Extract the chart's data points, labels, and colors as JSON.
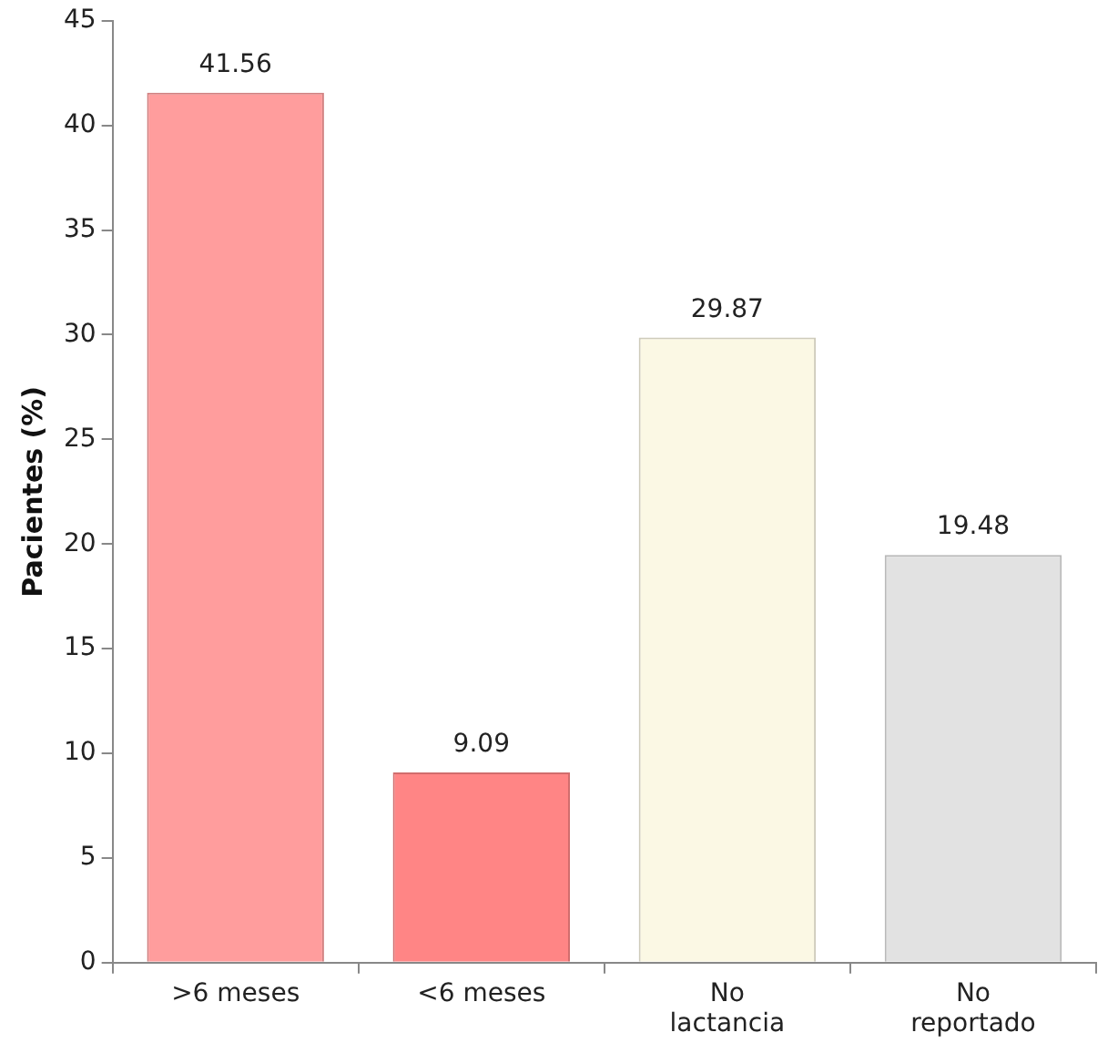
{
  "chart_data": {
    "type": "bar",
    "ylabel": "Pacientes (%)",
    "categories": [
      ">6 meses",
      "<6 meses",
      "No lactancia",
      "No reportado"
    ],
    "values": [
      41.56,
      9.09,
      29.87,
      19.48
    ],
    "colors": [
      "#ff9d9d",
      "#ff8585",
      "#fbf8e4",
      "#e2e2e2"
    ],
    "ylim": [
      0,
      45
    ],
    "yticks": [
      0,
      5,
      10,
      15,
      20,
      25,
      30,
      35,
      40,
      45
    ],
    "grid": false,
    "legend": false,
    "data_labels": true
  }
}
